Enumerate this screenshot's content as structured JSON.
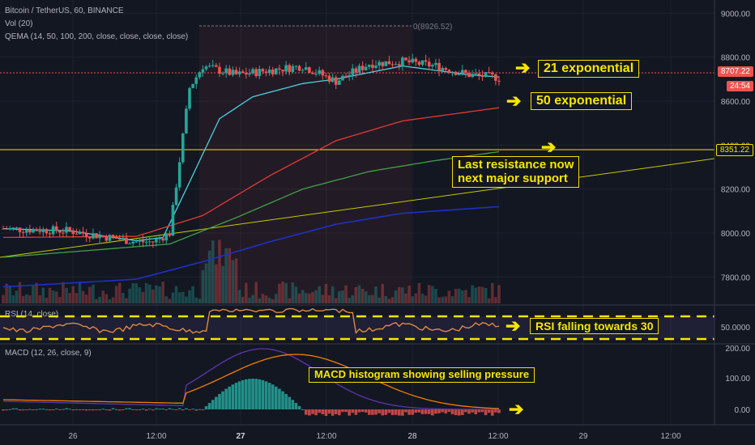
{
  "header": {
    "title": "Bitcoin / TetherUS, 60, BINANCE",
    "vol": "Vol (20)",
    "ema": "QEMA (14, 50, 100, 200, close, close, close, close)",
    "range_label": "0(8926.52)"
  },
  "price_axis": {
    "ticks": [
      "9000.00",
      "8800.00",
      "8600.00",
      "8400.00",
      "8200.00",
      "8000.00",
      "7800.00"
    ],
    "tick_values": [
      9000,
      8800,
      8600,
      8400,
      8200,
      8000,
      7800
    ],
    "current_price": "8707.22",
    "countdown": "24:54",
    "level_price": "8351.22"
  },
  "rsi": {
    "label": "RSI (14, close)",
    "tick": "50.0000"
  },
  "macd": {
    "label": "MACD (12, 26, close, 9)",
    "ticks": [
      "200.00",
      "100.00",
      "0.00"
    ]
  },
  "time_axis": [
    "26",
    "12:00",
    "27",
    "12:00",
    "28",
    "12:00",
    "29",
    "12:00"
  ],
  "annotations": {
    "ema21": "21 exponential",
    "ema50": "50 exponential",
    "support": "Last resistance now\nnext major support",
    "rsi": "RSI falling towards 30",
    "macd": "MACD histogram showing selling pressure"
  },
  "colors": {
    "background": "#131722",
    "up": "#26a69a",
    "down": "#ef5350",
    "ema21": "#4dd0e1",
    "ema50": "#e53935",
    "ema100": "#43a047",
    "ema200": "#1e30c8",
    "trendline": "#c8c800",
    "annotation": "#f7e600",
    "rsi_line": "#e08a3c",
    "macd_line": "#5e35b1",
    "signal_line": "#f57c00"
  },
  "chart_data": {
    "type": "line",
    "price_range": [
      7680,
      9060
    ],
    "series": [
      {
        "name": "Bitcoin / TetherUS",
        "x_index": [
          0,
          20,
          40,
          45,
          50,
          56,
          60,
          70,
          80,
          90,
          100,
          110,
          120,
          130,
          140,
          149
        ],
        "values": [
          8020,
          8010,
          7960,
          7960,
          8000,
          8660,
          8760,
          8720,
          8740,
          8760,
          8690,
          8770,
          8780,
          8760,
          8720,
          8707
        ]
      },
      {
        "name": "21",
        "x_index": [
          0,
          20,
          40,
          48,
          55,
          65,
          75,
          90,
          100,
          110,
          120,
          130,
          140,
          149
        ],
        "values": [
          8020,
          8010,
          7965,
          7980,
          8200,
          8520,
          8620,
          8680,
          8700,
          8730,
          8760,
          8740,
          8720,
          8710
        ]
      },
      {
        "name": "50",
        "x_index": [
          0,
          40,
          60,
          80,
          100,
          120,
          149
        ],
        "values": [
          7980,
          7985,
          8080,
          8260,
          8420,
          8510,
          8570
        ]
      },
      {
        "name": "100",
        "x_index": [
          0,
          50,
          70,
          90,
          110,
          130,
          149
        ],
        "values": [
          7890,
          7950,
          8070,
          8200,
          8280,
          8330,
          8370
        ]
      },
      {
        "name": "200",
        "x_index": [
          0,
          40,
          60,
          80,
          100,
          120,
          149
        ],
        "values": [
          7755,
          7790,
          7870,
          7960,
          8040,
          8090,
          8120
        ]
      }
    ]
  }
}
